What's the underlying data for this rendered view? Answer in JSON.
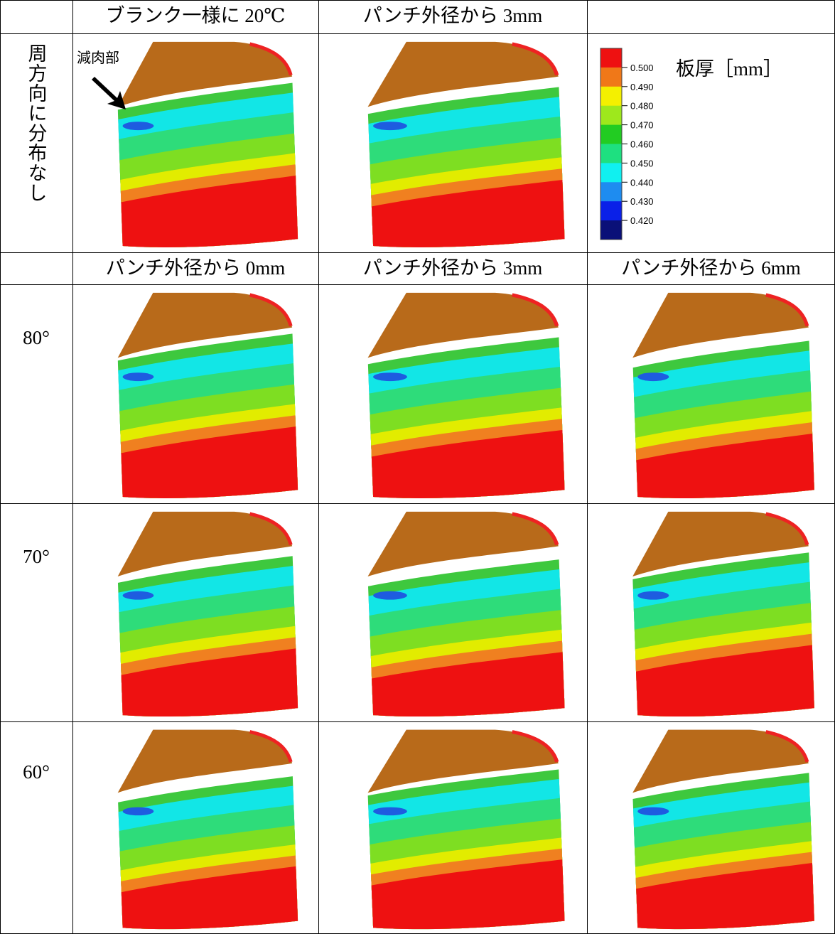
{
  "header_row_1": {
    "cells": [
      "ブランク一様に 20℃",
      "パンチ外径から 3mm"
    ]
  },
  "row_1": {
    "label": "周方向に分布なし",
    "annotation": "減肉部"
  },
  "legend": {
    "title": "板厚［mm］",
    "ticks": [
      "0.500",
      "0.490",
      "0.480",
      "0.470",
      "0.460",
      "0.450",
      "0.440",
      "0.430",
      "0.420"
    ],
    "colors": [
      "#ee1111",
      "#f07818",
      "#f4f000",
      "#9ee81c",
      "#22cc22",
      "#1ee080",
      "#10f0f0",
      "#1e8cf0",
      "#0a20e8",
      "#0a1078"
    ]
  },
  "header_row_2": {
    "cells": [
      "パンチ外径から 0mm",
      "パンチ外径から 3mm",
      "パンチ外径から 6mm"
    ]
  },
  "rows": [
    {
      "label": "80°"
    },
    {
      "label": "70°"
    },
    {
      "label": "60°"
    }
  ]
}
